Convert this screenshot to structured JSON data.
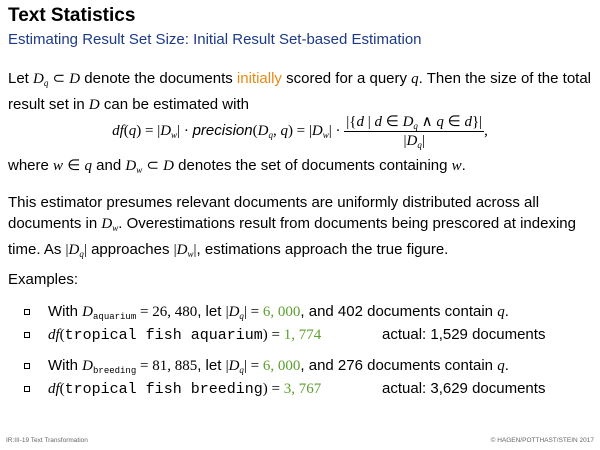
{
  "slide": {
    "title": "Text Statistics",
    "subtitle": "Estimating Result Set Size: Initial Result Set-based Estimation"
  },
  "p1": {
    "let": "Let ",
    "denote": " denote the documents ",
    "initially": "initially",
    "scored": " scored for a query ",
    "then": ". Then the size of the total result set in ",
    "estimated": " can be estimated with"
  },
  "formula": {
    "precision": "precision"
  },
  "p2": {
    "where": "where ",
    "and": " and ",
    "denotes": " denotes the set of documents containing ",
    "end": "."
  },
  "p3": {
    "text1": "This estimator presumes relevant documents are uniformly distributed across all documents in ",
    "text2": ". Overestimations result from documents being prescored at indexing time. As ",
    "text3": " approaches ",
    "text4": ", estimations approach the true figure."
  },
  "examples": {
    "label": "Examples:",
    "items": [
      {
        "with": "With ",
        "sub": "aquarium",
        "count": "26, 480",
        "let": ", let ",
        "dq": "6, 000",
        "rest": ", and 402 documents contain "
      },
      {
        "query": "tropical fish aquarium",
        "estimate": "1, 774",
        "actual": "actual: 1,529 documents"
      },
      {
        "with": "With ",
        "sub": "breeding",
        "count": "81, 885",
        "let": ", let ",
        "dq": "6, 000",
        "rest": ", and 276 documents contain "
      },
      {
        "query": "tropical fish breeding",
        "estimate": "3, 767",
        "actual": "actual: 3,629 documents"
      }
    ]
  },
  "footer": {
    "left": "IR:III-19   Text Transformation",
    "right": "© HAGEN/POTTHAST/STEIN 2017"
  },
  "colors": {
    "subtitle": "#1c3a87",
    "highlight_orange": "#e98a15",
    "highlight_green": "#5aa02c"
  }
}
